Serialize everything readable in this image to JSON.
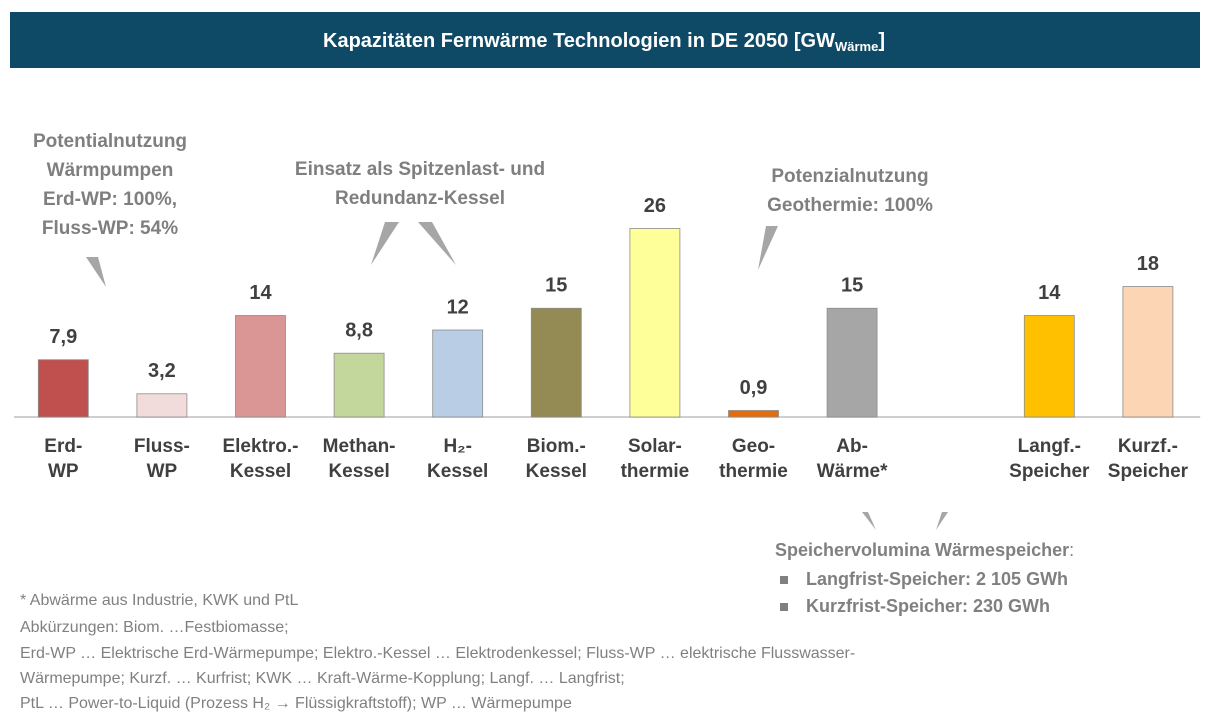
{
  "chart_data": {
    "type": "bar",
    "title": "Kapazitäten Fernwärme Technologien in DE 2050 [GW",
    "title_subscript": "Wärme",
    "title_end": "]",
    "categories": [
      [
        "Erd-",
        "WP"
      ],
      [
        "Fluss-",
        "WP"
      ],
      [
        "Elektro.-",
        "Kessel"
      ],
      [
        "Methan-",
        "Kessel"
      ],
      [
        "H₂-",
        "Kessel"
      ],
      [
        "Biom.-",
        "Kessel"
      ],
      [
        "Solar-",
        "thermie"
      ],
      [
        "Geo-",
        "thermie"
      ],
      [
        "Ab-",
        "Wärme*"
      ],
      null,
      [
        "Langf.-",
        "Speicher"
      ],
      [
        "Kurzf.-",
        "Speicher"
      ]
    ],
    "values": [
      7.9,
      3.2,
      14,
      8.8,
      12,
      15,
      26,
      0.9,
      15,
      null,
      14,
      18
    ],
    "value_labels": [
      "7,9",
      "3,2",
      "14",
      "8,8",
      "12",
      "15",
      "26",
      "0,9",
      "15",
      null,
      "14",
      "18"
    ],
    "colors": [
      "#c0504d",
      "#f2dcdb",
      "#d99694",
      "#c3d69b",
      "#b9cde5",
      "#948a54",
      "#ffff99",
      "#e46c0a",
      "#a6a6a6",
      null,
      "#ffc000",
      "#fcd5b5"
    ],
    "ylim": [
      0,
      30
    ],
    "annotations": [
      {
        "lines": [
          "Potentialnutzung",
          "Wärmpumpen",
          "Erd-WP: 100%,",
          "Fluss-WP: 54%"
        ]
      },
      {
        "lines": [
          "Einsatz als Spitzenlast- und",
          "Redundanz-Kessel"
        ]
      },
      {
        "lines": [
          "Potenzialnutzung",
          "Geothermie: 100%"
        ]
      }
    ],
    "storage_note": {
      "title": "Speichervolumina Wärmespeicher",
      "title_suffix": ":",
      "items": [
        "Langfrist-Speicher: 2 105 GWh",
        "Kurzfrist-Speicher: 230 GWh"
      ]
    },
    "footnotes": [
      "* Abwärme aus Industrie, KWK und PtL",
      "Abkürzungen: Biom. …Festbiomasse;",
      "Erd-WP … Elektrische Erd-Wärmepumpe; Elektro.-Kessel … Elektrodenkessel; Fluss-WP … elektrische Flusswasser-",
      "Wärmepumpe; Kurzf. … Kurfrist; KWK … Kraft-Wärme-Kopplung; Langf. … Langfrist;",
      "PtL … Power-to-Liquid (Prozess H₂ → Flüssigkraftstoff); WP … Wärmepumpe"
    ]
  }
}
